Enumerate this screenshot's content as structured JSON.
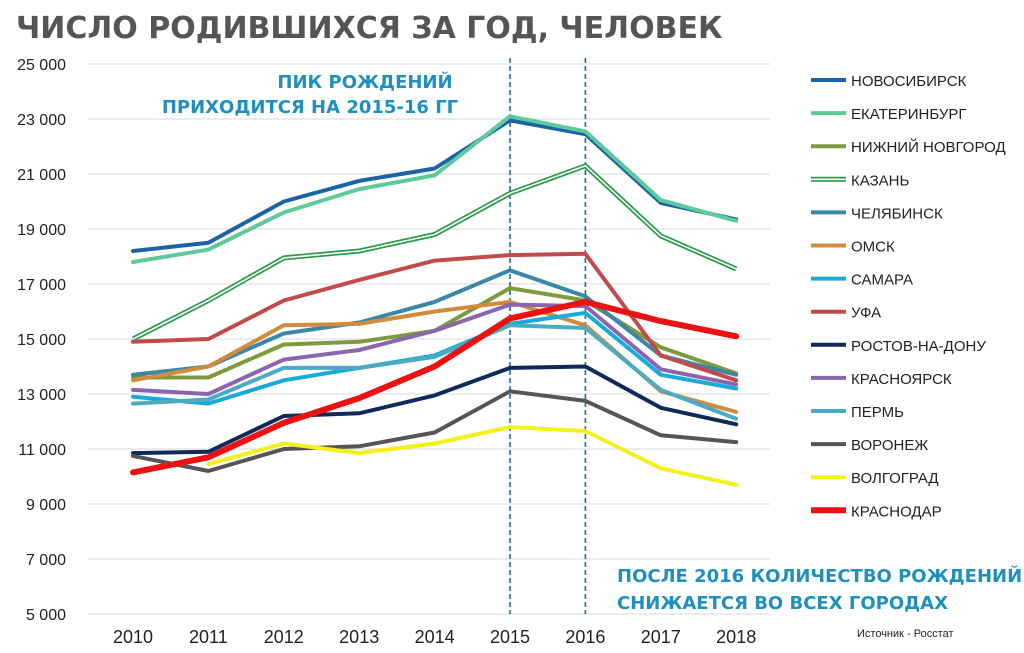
{
  "chart_data": {
    "type": "line",
    "title": "ЧИСЛО РОДИВШИХСЯ ЗА ГОД, ЧЕЛОВЕК",
    "categories": [
      "2010",
      "2011",
      "2012",
      "2013",
      "2014",
      "2015",
      "2016",
      "2017",
      "2018"
    ],
    "y_ticks": [
      "25 000",
      "23 000",
      "21 000",
      "19 000",
      "17 000",
      "15 000",
      "13 000",
      "11 000",
      "9 000",
      "7 000",
      "5 000"
    ],
    "ylim": [
      5000,
      25000
    ],
    "grid": true,
    "legend_position": "right",
    "annotations": {
      "peak_line1": "ПИК РОЖДЕНИЙ",
      "peak_line2": "ПРИХОДИТСЯ НА 2015-16 ГГ",
      "decline_line1": "ПОСЛЕ 2016 КОЛИЧЕСТВО РОЖДЕНИЙ",
      "decline_line2": "СНИЖАЕТСЯ ВО ВСЕХ ГОРОДАХ",
      "marked_years": [
        "2015",
        "2016"
      ]
    },
    "source": "Источник - Росстат",
    "series": [
      {
        "name": "НОВОСИБИРСК",
        "color": "#1a64a6",
        "style": "solid",
        "values": [
          18200,
          18500,
          20000,
          20750,
          21200,
          22950,
          22450,
          19950,
          19350
        ]
      },
      {
        "name": "ЕКАТЕРИНБУРГ",
        "color": "#5ec99c",
        "style": "solid",
        "values": [
          17800,
          18250,
          19600,
          20450,
          20950,
          23100,
          22550,
          20050,
          19300
        ]
      },
      {
        "name": "НИЖНИЙ НОВГОРОД",
        "color": "#7f9a3c",
        "style": "solid",
        "values": [
          13600,
          13600,
          14800,
          14900,
          15300,
          16850,
          16400,
          14700,
          13750
        ]
      },
      {
        "name": "КАЗАНЬ",
        "color": "#2a9a4a",
        "style": "double",
        "values": [
          15000,
          16400,
          17950,
          18200,
          18800,
          20300,
          21300,
          18750,
          17550
        ]
      },
      {
        "name": "ЧЕЛЯБИНСК",
        "color": "#3a87a8",
        "style": "solid",
        "values": [
          13700,
          14000,
          15200,
          15600,
          16350,
          17500,
          16550,
          14400,
          13700
        ]
      },
      {
        "name": "ОМСК",
        "color": "#d28a3c",
        "style": "solid",
        "values": [
          13500,
          14000,
          15500,
          15550,
          16000,
          16350,
          15500,
          13100,
          12350
        ]
      },
      {
        "name": "САМАРА",
        "color": "#19aadc",
        "style": "solid",
        "values": [
          12900,
          12650,
          13500,
          13950,
          14400,
          15550,
          15950,
          13700,
          13200
        ]
      },
      {
        "name": "УФА",
        "color": "#c24a4a",
        "style": "solid",
        "values": [
          14900,
          15000,
          16400,
          17150,
          17850,
          18050,
          18100,
          14400,
          13500
        ]
      },
      {
        "name": "РОСТОВ-НА-ДОНУ",
        "color": "#0f2a5a",
        "style": "solid",
        "values": [
          10850,
          10900,
          12200,
          12300,
          12950,
          13950,
          14000,
          12500,
          11900
        ]
      },
      {
        "name": "КРАСНОЯРСК",
        "color": "#8a66ae",
        "style": "solid",
        "values": [
          13150,
          13000,
          14250,
          14600,
          15300,
          16250,
          16200,
          13900,
          13350
        ]
      },
      {
        "name": "ПЕРМЬ",
        "color": "#4aabc6",
        "style": "solid",
        "values": [
          12650,
          12800,
          13950,
          13950,
          14350,
          15500,
          15400,
          13150,
          12100
        ]
      },
      {
        "name": "ВОРОНЕЖ",
        "color": "#555555",
        "style": "solid",
        "values": [
          10750,
          10200,
          11000,
          11100,
          11600,
          13100,
          12750,
          11500,
          11250
        ]
      },
      {
        "name": "ВОЛГОГРАД",
        "color": "#f2f21a",
        "style": "solid",
        "values": [
          null,
          10450,
          11200,
          10850,
          11200,
          11800,
          11650,
          10300,
          9700
        ]
      },
      {
        "name": "КРАСНОДАР",
        "color": "#ee1111",
        "style": "bold",
        "values": [
          10150,
          10700,
          11950,
          12850,
          14000,
          15750,
          16350,
          15650,
          15100
        ]
      }
    ]
  }
}
